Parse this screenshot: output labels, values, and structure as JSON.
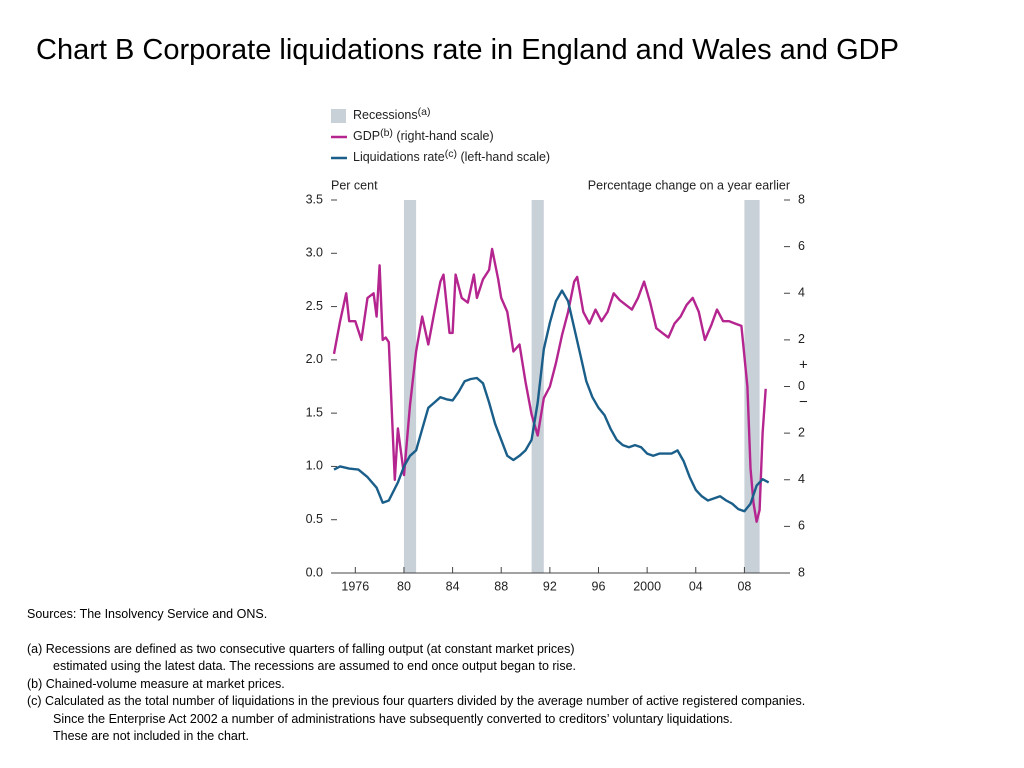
{
  "chart_data": {
    "type": "line",
    "title": "Chart B  Corporate liquidations rate in England and Wales and GDP",
    "ylabel": "Per cent",
    "y2label": "Percentage change on a year earlier",
    "xlim": [
      1974,
      2011.75
    ],
    "xticks": [
      1976,
      {
        "value": 1980,
        "label": "80"
      },
      {
        "value": 1984,
        "label": "84"
      },
      {
        "value": 1988,
        "label": "88"
      },
      {
        "value": 1992,
        "label": "92"
      },
      {
        "value": 1996,
        "label": "96"
      },
      2000,
      {
        "value": 2004,
        "label": "04"
      },
      {
        "value": 2008,
        "label": "08"
      }
    ],
    "ylim": [
      0,
      3.5
    ],
    "yticks": [
      {
        "value": 0,
        "label": "0.0"
      },
      {
        "value": 0.5,
        "label": "0.5"
      },
      {
        "value": 1,
        "label": "1.0"
      },
      {
        "value": 1.5,
        "label": "1.5"
      },
      {
        "value": 2,
        "label": "2.0"
      },
      {
        "value": 2.5,
        "label": "2.5"
      },
      {
        "value": 3,
        "label": "3.0"
      },
      {
        "value": 3.5,
        "label": "3.5"
      }
    ],
    "y2lim": [
      -8,
      8
    ],
    "y2ticks": [
      {
        "value": -8,
        "label": "8"
      },
      {
        "value": -6,
        "label": "6"
      },
      {
        "value": -4,
        "label": "4"
      },
      {
        "value": -2,
        "label": "2"
      },
      0,
      2,
      4,
      6,
      8
    ],
    "y2_signs": [
      "+",
      "−"
    ],
    "recessions": {
      "name": "Recessions",
      "note_mark": "(a)",
      "color": "#c8d0d8",
      "spans": [
        [
          1980,
          1981
        ],
        [
          1990.5,
          1991.5
        ],
        [
          2008,
          2009.25
        ]
      ]
    },
    "series": [
      {
        "name": "GDP",
        "note_mark": "(b)",
        "scale_note": "(right-hand scale)",
        "color": "#b5258f",
        "axis": "y2",
        "x": [
          1974.25,
          1974.75,
          1975.25,
          1975.5,
          1976,
          1976.5,
          1977,
          1977.5,
          1977.75,
          1978,
          1978.25,
          1978.5,
          1978.75,
          1979.25,
          1979.5,
          1980,
          1980.5,
          1981,
          1981.5,
          1982,
          1982.5,
          1983,
          1983.25,
          1983.75,
          1984,
          1984.25,
          1984.75,
          1985.25,
          1985.75,
          1986,
          1986.5,
          1987,
          1987.25,
          1987.75,
          1988,
          1988.5,
          1989,
          1989.5,
          1990,
          1990.5,
          1991,
          1991.5,
          1992,
          1992.5,
          1993,
          1993.5,
          1994,
          1994.25,
          1994.75,
          1995.25,
          1995.75,
          1996.25,
          1996.75,
          1997.25,
          1997.75,
          1998.25,
          1998.75,
          1999.25,
          1999.75,
          2000.25,
          2000.75,
          2001.25,
          2001.75,
          2002.25,
          2002.75,
          2003.25,
          2003.75,
          2004.25,
          2004.75,
          2005.25,
          2005.75,
          2006.25,
          2006.75,
          2007.25,
          2007.75,
          2008.25,
          2008.5,
          2008.75,
          2009,
          2009.25,
          2009.5,
          2009.75
        ],
        "values": [
          1.4,
          2.8,
          4.0,
          2.8,
          2.8,
          2.0,
          3.8,
          4.0,
          3.0,
          5.2,
          2.0,
          2.1,
          1.9,
          -4.0,
          -1.8,
          -3.8,
          -0.8,
          1.5,
          3.0,
          1.8,
          3.2,
          4.5,
          4.8,
          2.3,
          2.3,
          4.8,
          3.8,
          3.6,
          4.8,
          3.8,
          4.6,
          5.0,
          5.9,
          4.6,
          3.8,
          3.2,
          1.5,
          1.8,
          0.2,
          -1.2,
          -2.1,
          -0.5,
          0.0,
          1.0,
          2.2,
          3.2,
          4.5,
          4.7,
          3.2,
          2.7,
          3.3,
          2.8,
          3.2,
          4.0,
          3.7,
          3.5,
          3.3,
          3.8,
          4.5,
          3.6,
          2.5,
          2.3,
          2.1,
          2.7,
          3.0,
          3.5,
          3.8,
          3.2,
          2.0,
          2.6,
          3.3,
          2.8,
          2.8,
          2.7,
          2.6,
          0.0,
          -3.5,
          -5.0,
          -5.8,
          -5.3,
          -2.0,
          -0.1
        ]
      },
      {
        "name": "Liquidations rate",
        "note_mark": "(c)",
        "scale_note": "(left-hand scale)",
        "color": "#1a5e8a",
        "axis": "y",
        "x": [
          1974.25,
          1974.75,
          1975.5,
          1976.25,
          1977,
          1977.75,
          1978.25,
          1978.75,
          1979.5,
          1980,
          1980.5,
          1981,
          1981.5,
          1982,
          1982.5,
          1983,
          1983.5,
          1984,
          1984.5,
          1985,
          1985.5,
          1986,
          1986.5,
          1987,
          1987.5,
          1988,
          1988.5,
          1989,
          1989.5,
          1990,
          1990.5,
          1991,
          1991.5,
          1992,
          1992.5,
          1993,
          1993.5,
          1994,
          1994.5,
          1995,
          1995.5,
          1996,
          1996.5,
          1997,
          1997.5,
          1998,
          1998.5,
          1999,
          1999.5,
          2000,
          2000.5,
          2001,
          2001.5,
          2002,
          2002.5,
          2003,
          2003.5,
          2004,
          2004.5,
          2005,
          2005.5,
          2006,
          2006.5,
          2007,
          2007.5,
          2008,
          2008.5,
          2009,
          2009.5,
          2010
        ],
        "values": [
          0.97,
          1.0,
          0.98,
          0.97,
          0.9,
          0.8,
          0.66,
          0.68,
          0.85,
          1.0,
          1.1,
          1.15,
          1.35,
          1.55,
          1.6,
          1.65,
          1.63,
          1.62,
          1.7,
          1.8,
          1.82,
          1.83,
          1.78,
          1.6,
          1.4,
          1.25,
          1.1,
          1.06,
          1.1,
          1.15,
          1.25,
          1.6,
          2.1,
          2.35,
          2.55,
          2.65,
          2.55,
          2.3,
          2.05,
          1.8,
          1.65,
          1.55,
          1.48,
          1.35,
          1.25,
          1.2,
          1.18,
          1.2,
          1.18,
          1.12,
          1.1,
          1.12,
          1.12,
          1.12,
          1.15,
          1.05,
          0.9,
          0.78,
          0.72,
          0.68,
          0.7,
          0.72,
          0.68,
          0.65,
          0.6,
          0.58,
          0.65,
          0.82,
          0.88,
          0.85
        ]
      }
    ],
    "sources": "Sources:  The Insolvency Service and ONS.",
    "notes": [
      [
        "(a)  Recessions are defined as two consecutive quarters of falling output (at constant market prices)",
        "estimated using the latest data.  The recessions are assumed to end once output began to rise."
      ],
      [
        "(b)  Chained-volume measure at market prices."
      ],
      [
        "(c)  Calculated as the total number of liquidations in the previous four quarters divided by the average number of active registered companies.",
        "Since the Enterprise Act 2002 a number of administrations have subsequently converted to creditors’ voluntary liquidations.",
        "These are not included in the chart."
      ]
    ]
  }
}
